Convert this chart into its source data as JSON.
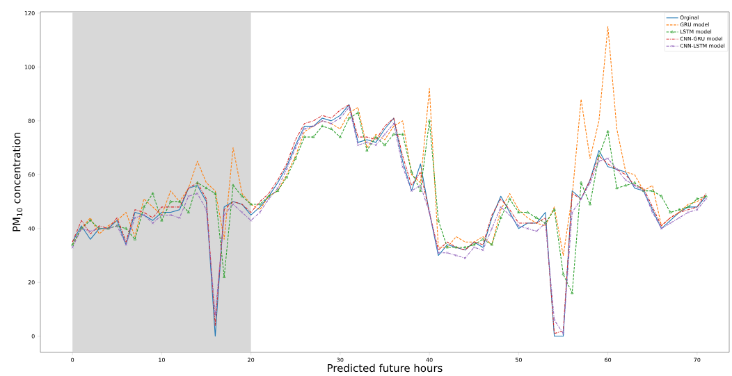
{
  "chart_data": {
    "type": "line",
    "xlabel": "Predicted future hours",
    "ylabel": "PM$_{10}$ concentration",
    "x": [
      0,
      1,
      2,
      3,
      4,
      5,
      6,
      7,
      8,
      9,
      10,
      11,
      12,
      13,
      14,
      15,
      16,
      17,
      18,
      19,
      20,
      21,
      22,
      23,
      24,
      25,
      26,
      27,
      28,
      29,
      30,
      31,
      32,
      33,
      34,
      35,
      36,
      37,
      38,
      39,
      40,
      41,
      42,
      43,
      44,
      45,
      46,
      47,
      48,
      49,
      50,
      51,
      52,
      53,
      54,
      55,
      56,
      57,
      58,
      59,
      60,
      61,
      62,
      63,
      64,
      65,
      66,
      67,
      68,
      69,
      70,
      71
    ],
    "series": [
      {
        "name": "Orginal",
        "color": "#1f77b4",
        "line_style": "solid",
        "marker": "none",
        "values": [
          35,
          41,
          36,
          40,
          40,
          43,
          34,
          46,
          45,
          43,
          46,
          46,
          47,
          55,
          56,
          50,
          0,
          48,
          50,
          49,
          45,
          48,
          52,
          57,
          63,
          71,
          78,
          78,
          81,
          80,
          82,
          86,
          72,
          73,
          72,
          77,
          81,
          65,
          54,
          64,
          46,
          30,
          34,
          33,
          32,
          35,
          33,
          44,
          52,
          46,
          40,
          42,
          42,
          46,
          0,
          0,
          54,
          51,
          58,
          69,
          63,
          62,
          61,
          55,
          54,
          47,
          40,
          43,
          46,
          48,
          48,
          52
        ]
      },
      {
        "name": "GRU model",
        "color": "#ff7f0e",
        "line_style": "dashed",
        "marker": "none",
        "values": [
          34,
          40,
          44,
          38,
          41,
          43,
          46,
          37,
          51,
          48,
          45,
          54,
          50,
          55,
          65,
          57,
          54,
          36,
          70,
          53,
          49,
          47,
          52,
          54,
          60,
          67,
          76,
          78,
          80,
          79,
          77,
          83,
          85,
          70,
          75,
          73,
          78,
          80,
          60,
          57,
          92,
          33,
          33,
          37,
          35,
          35,
          37,
          34,
          47,
          53,
          47,
          44,
          42,
          41,
          48,
          30,
          52,
          88,
          66,
          80,
          115,
          77,
          61,
          60,
          54,
          56,
          41,
          44,
          46,
          49,
          50,
          52
        ]
      },
      {
        "name": "LSTM model",
        "color": "#2ca02c",
        "line_style": "dashed",
        "marker": "triangle",
        "values": [
          34,
          40,
          43,
          40,
          40,
          41,
          40,
          36,
          48,
          53,
          43,
          50,
          50,
          46,
          57,
          55,
          53,
          22,
          56,
          52,
          49,
          49,
          52,
          54,
          59,
          66,
          74,
          74,
          78,
          77,
          74,
          81,
          83,
          69,
          74,
          71,
          75,
          75,
          61,
          54,
          80,
          43,
          33,
          33,
          33,
          34,
          36,
          34,
          44,
          51,
          46,
          46,
          44,
          42,
          47,
          23,
          16,
          57,
          49,
          67,
          76,
          55,
          56,
          57,
          54,
          54,
          52,
          46,
          47,
          48,
          51,
          52
        ]
      },
      {
        "name": "CNN-GRU model",
        "color": "#d62728",
        "line_style": "dashdot",
        "marker": "none",
        "values": [
          35,
          43,
          38,
          41,
          40,
          44,
          35,
          47,
          46,
          44,
          48,
          48,
          48,
          55,
          57,
          51,
          4,
          47,
          50,
          49,
          46,
          50,
          53,
          58,
          64,
          73,
          79,
          80,
          82,
          81,
          84,
          86,
          74,
          74,
          73,
          78,
          81,
          67,
          56,
          61,
          46,
          32,
          35,
          33,
          32,
          35,
          34,
          45,
          51,
          47,
          42,
          42,
          42,
          44,
          1,
          2,
          53,
          51,
          58,
          67,
          64,
          62,
          60,
          56,
          55,
          48,
          41,
          44,
          46,
          47,
          48,
          53
        ]
      },
      {
        "name": "CNN-LSTM model",
        "color": "#9467bd",
        "line_style": "dashdot",
        "marker": "cross",
        "values": [
          33,
          40,
          39,
          40,
          40,
          41,
          34,
          44,
          45,
          42,
          45,
          45,
          44,
          52,
          53,
          47,
          8,
          45,
          49,
          46,
          43,
          46,
          51,
          55,
          62,
          70,
          77,
          78,
          80,
          79,
          81,
          85,
          71,
          72,
          71,
          75,
          79,
          63,
          54,
          56,
          46,
          31,
          31,
          30,
          29,
          33,
          32,
          40,
          48,
          45,
          41,
          40,
          39,
          42,
          6,
          1,
          46,
          51,
          57,
          65,
          66,
          62,
          58,
          56,
          54,
          46,
          40,
          42,
          44,
          46,
          47,
          51
        ]
      }
    ],
    "bands": [
      {
        "axis": "x",
        "from": 0,
        "to": 20,
        "color": "#d8d8d8"
      }
    ],
    "xlim": [
      -3.6,
      73.6
    ],
    "ylim": [
      -6,
      120.5
    ],
    "xticks": [
      0,
      10,
      20,
      30,
      40,
      50,
      60,
      70
    ],
    "yticks": [
      0,
      20,
      40,
      60,
      80,
      100,
      120
    ],
    "grid": false,
    "legend": "top right"
  }
}
